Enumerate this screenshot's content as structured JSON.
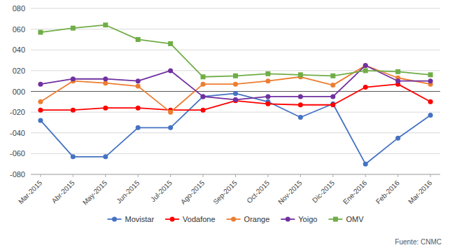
{
  "chart_data": {
    "type": "line",
    "categories": [
      "Mar-2015",
      "Abr-2015",
      "May-2015",
      "Jun-2015",
      "Jul-2015",
      "Ago-2015",
      "Sep-2015",
      "Oct-2015",
      "Nov-2015",
      "Dic-2015",
      "Ene-2016",
      "Feb-2016",
      "Mar-2016"
    ],
    "series": [
      {
        "name": "Movistar",
        "color": "#4472C4",
        "marker": "circle",
        "values": [
          -28,
          -63,
          -63,
          -35,
          -35,
          -5,
          -2,
          -10,
          -25,
          -12,
          -70,
          -45,
          -23
        ]
      },
      {
        "name": "Vodafone",
        "color": "#FF0000",
        "marker": "circle",
        "values": [
          -18,
          -18,
          -16,
          -16,
          -18,
          -18,
          -9,
          -12,
          -13,
          -13,
          4,
          7,
          -10
        ]
      },
      {
        "name": "Orange",
        "color": "#ED7D31",
        "marker": "circle",
        "values": [
          -10,
          10,
          8,
          5,
          -20,
          7,
          7,
          10,
          14,
          6,
          25,
          13,
          7
        ]
      },
      {
        "name": "Yoigo",
        "color": "#7030A0",
        "marker": "circle",
        "values": [
          7,
          12,
          12,
          10,
          20,
          -5,
          -8,
          -5,
          -5,
          -5,
          25,
          10,
          10
        ]
      },
      {
        "name": "OMV",
        "color": "#70AD47",
        "marker": "square",
        "values": [
          57,
          61,
          64,
          50,
          46,
          14,
          15,
          17,
          16,
          15,
          20,
          19,
          16
        ]
      }
    ],
    "ylim": [
      -80,
      80
    ],
    "yticks": [
      {
        "value": -80,
        "label": "-080"
      },
      {
        "value": -60,
        "label": "-060"
      },
      {
        "value": -40,
        "label": "-040"
      },
      {
        "value": -20,
        "label": "-020"
      },
      {
        "value": 0,
        "label": "000"
      },
      {
        "value": 20,
        "label": "020"
      },
      {
        "value": 40,
        "label": "040"
      },
      {
        "value": 60,
        "label": "060"
      },
      {
        "value": 80,
        "label": "080"
      }
    ],
    "grid": true,
    "legend": "bottom",
    "annotations": [
      "Fuente: CNMC"
    ]
  }
}
